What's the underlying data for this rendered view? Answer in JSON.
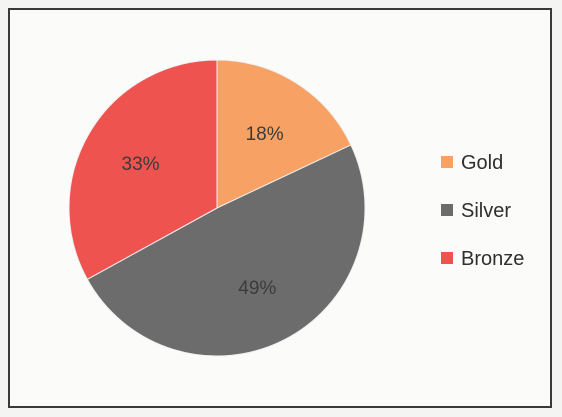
{
  "chart_data": {
    "type": "pie",
    "categories": [
      "Gold",
      "Silver",
      "Bronze"
    ],
    "values": [
      18,
      49,
      33
    ],
    "labels": [
      "18%",
      "49%",
      "33%"
    ],
    "colors": [
      "#f7a164",
      "#6c6c6c",
      "#ef5350"
    ],
    "title": "",
    "legend_position": "right",
    "start_angle_deg": 0,
    "direction": "clockwise"
  }
}
